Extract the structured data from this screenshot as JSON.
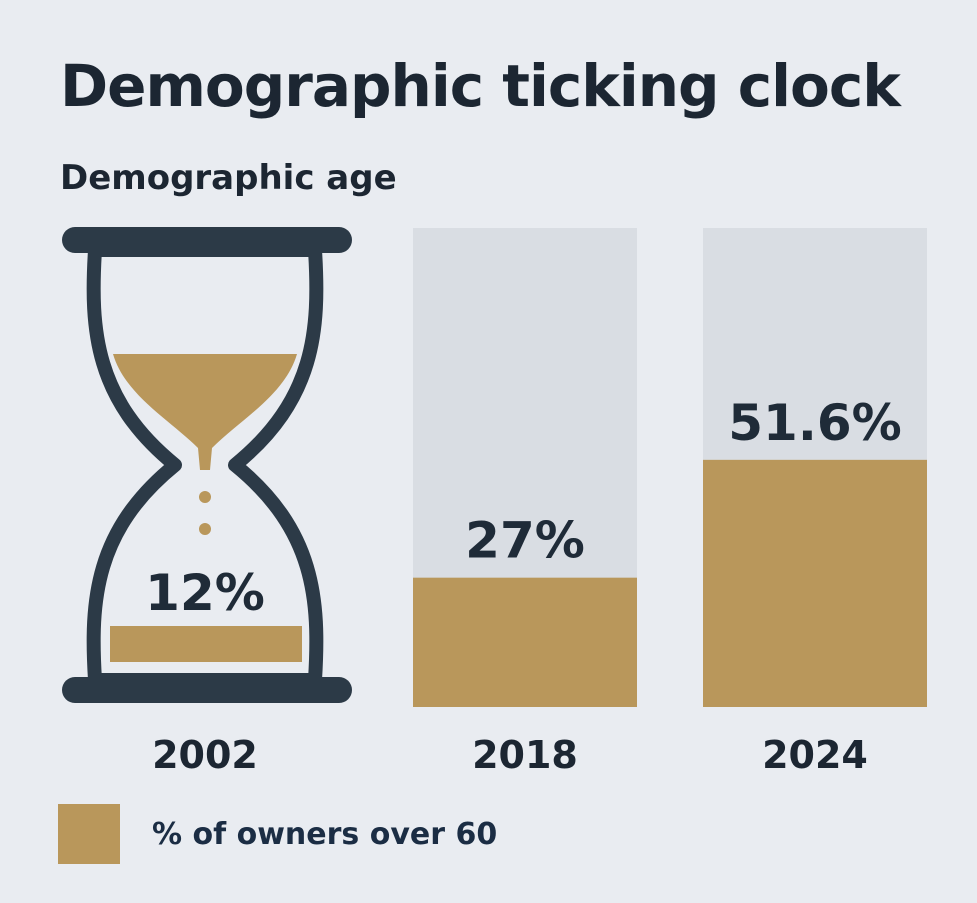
{
  "title": "Demographic ticking clock",
  "subtitle": "Demographic age",
  "legend": {
    "label": "% of owners over 60",
    "color": "#b9975b"
  },
  "colors": {
    "fill": "#b9975b",
    "track": "#d9dde3",
    "dark": "#2c3a47",
    "background": "#e9ecf1"
  },
  "chart_data": {
    "type": "bar",
    "title": "Demographic ticking clock",
    "subtitle": "Demographic age",
    "categories": [
      "2002",
      "2018",
      "2024"
    ],
    "series": [
      {
        "name": "% of owners over 60",
        "values": [
          12,
          27,
          51.6
        ],
        "labels": [
          "12%",
          "27%",
          "51.6%"
        ]
      }
    ],
    "ylim": [
      0,
      100
    ],
    "first_bar_style": "hourglass-icon",
    "grid": false,
    "legend_position": "bottom-left"
  }
}
